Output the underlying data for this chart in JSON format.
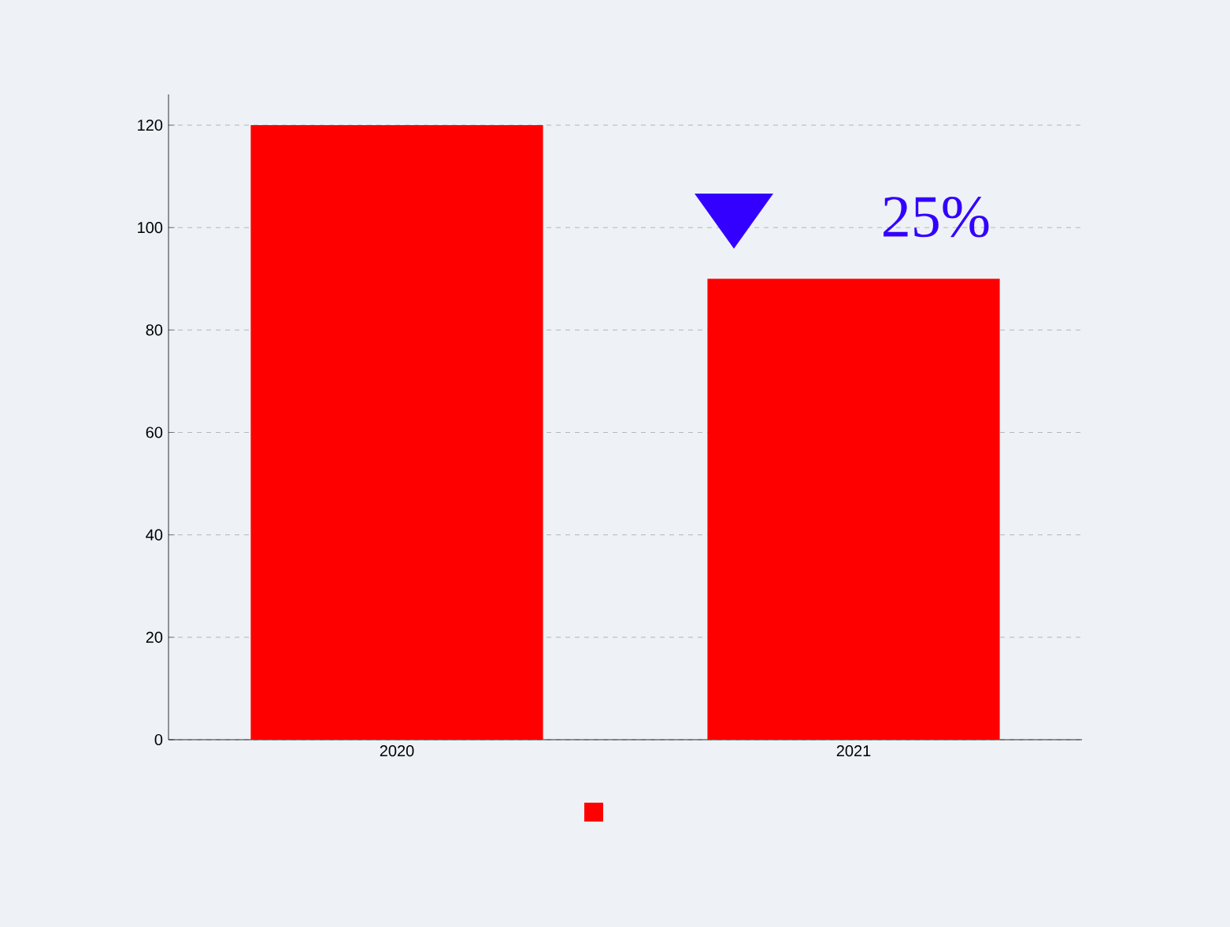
{
  "chart_data": {
    "type": "bar",
    "categories": [
      "2020",
      "2021"
    ],
    "series": [
      {
        "color": "#ff0000",
        "values": [
          120,
          90
        ]
      }
    ],
    "ylim": [
      0,
      126
    ],
    "yticks": [
      0,
      20,
      40,
      60,
      80,
      100,
      120
    ],
    "grid": "y",
    "annotations": [
      "25%"
    ]
  }
}
